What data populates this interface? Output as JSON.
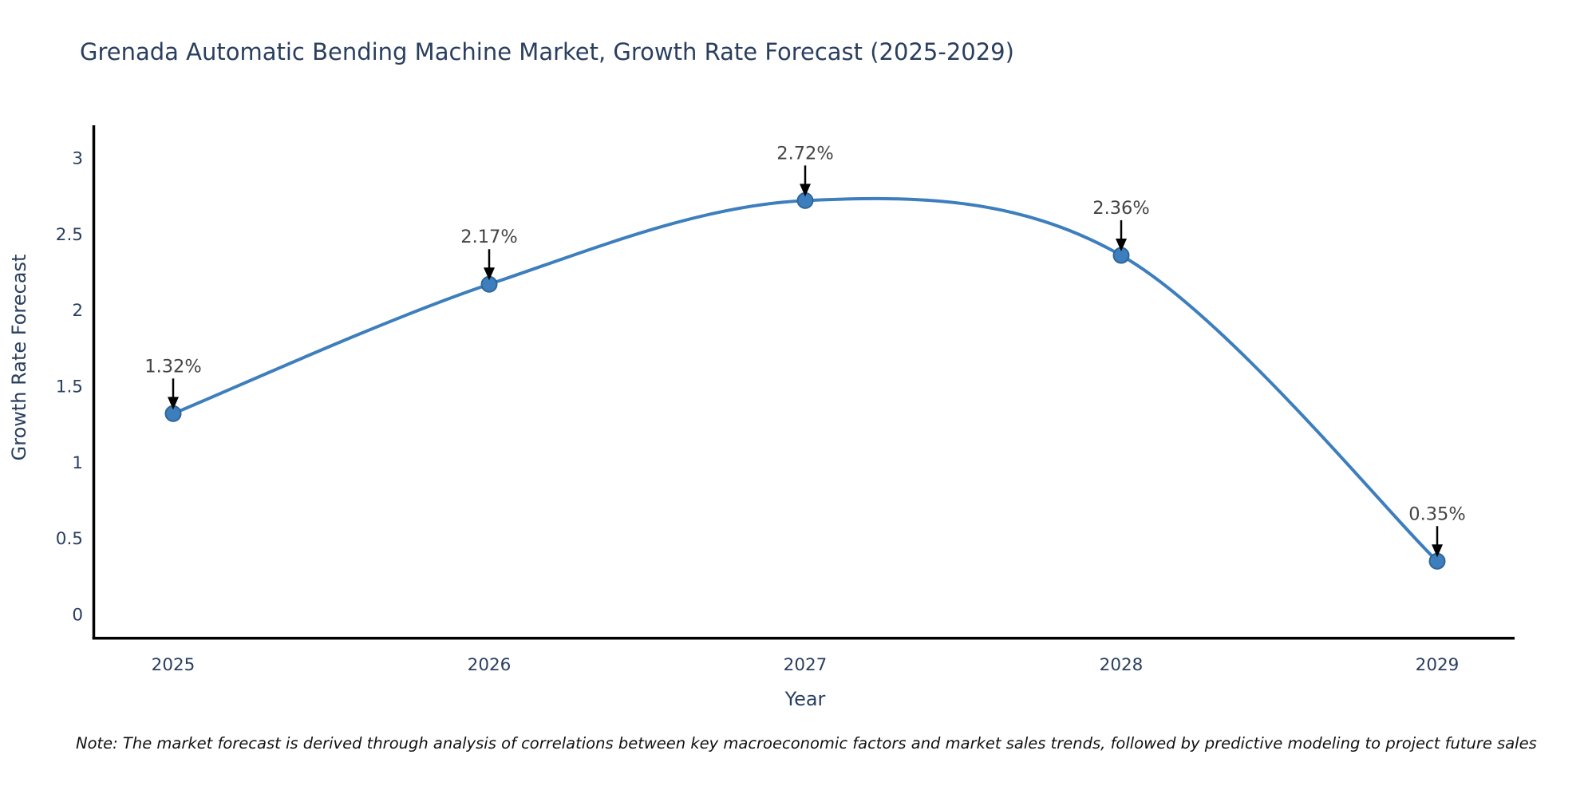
{
  "chart_data": {
    "type": "line",
    "title": "Grenada Automatic Bending Machine Market, Growth Rate Forecast (2025-2029)",
    "xlabel": "Year",
    "ylabel": "Growth Rate Forecast",
    "x": [
      2025,
      2026,
      2027,
      2028,
      2029
    ],
    "series": [
      {
        "name": "Growth Rate Forecast",
        "values": [
          1.32,
          2.17,
          2.72,
          2.36,
          0.35
        ],
        "point_labels": [
          "1.32%",
          "2.17%",
          "2.72%",
          "2.36%",
          "0.35%"
        ]
      }
    ],
    "curve": "spline",
    "markers": true,
    "grid": false,
    "legend_position": "none",
    "xticks": [
      "2025",
      "2026",
      "2027",
      "2028",
      "2029"
    ],
    "yticks": [
      0,
      0.5,
      1,
      1.5,
      2,
      2.5,
      3
    ],
    "ylim": [
      0,
      3.37
    ],
    "colors": {
      "line": "#3d7ebd",
      "marker_fill": "#3d7ebd",
      "marker_edge": "#2f6699",
      "axis_line": "#000000",
      "axis_text": "#2a3f5f",
      "annotation_text": "#444444",
      "annotation_arrow": "#000000",
      "title_text": "#2a3f5f",
      "background": "#ffffff"
    }
  },
  "footnote": "Note: The market forecast is derived through analysis of correlations between key macroeconomic factors and market sales trends, followed by predictive modeling to project future sales"
}
